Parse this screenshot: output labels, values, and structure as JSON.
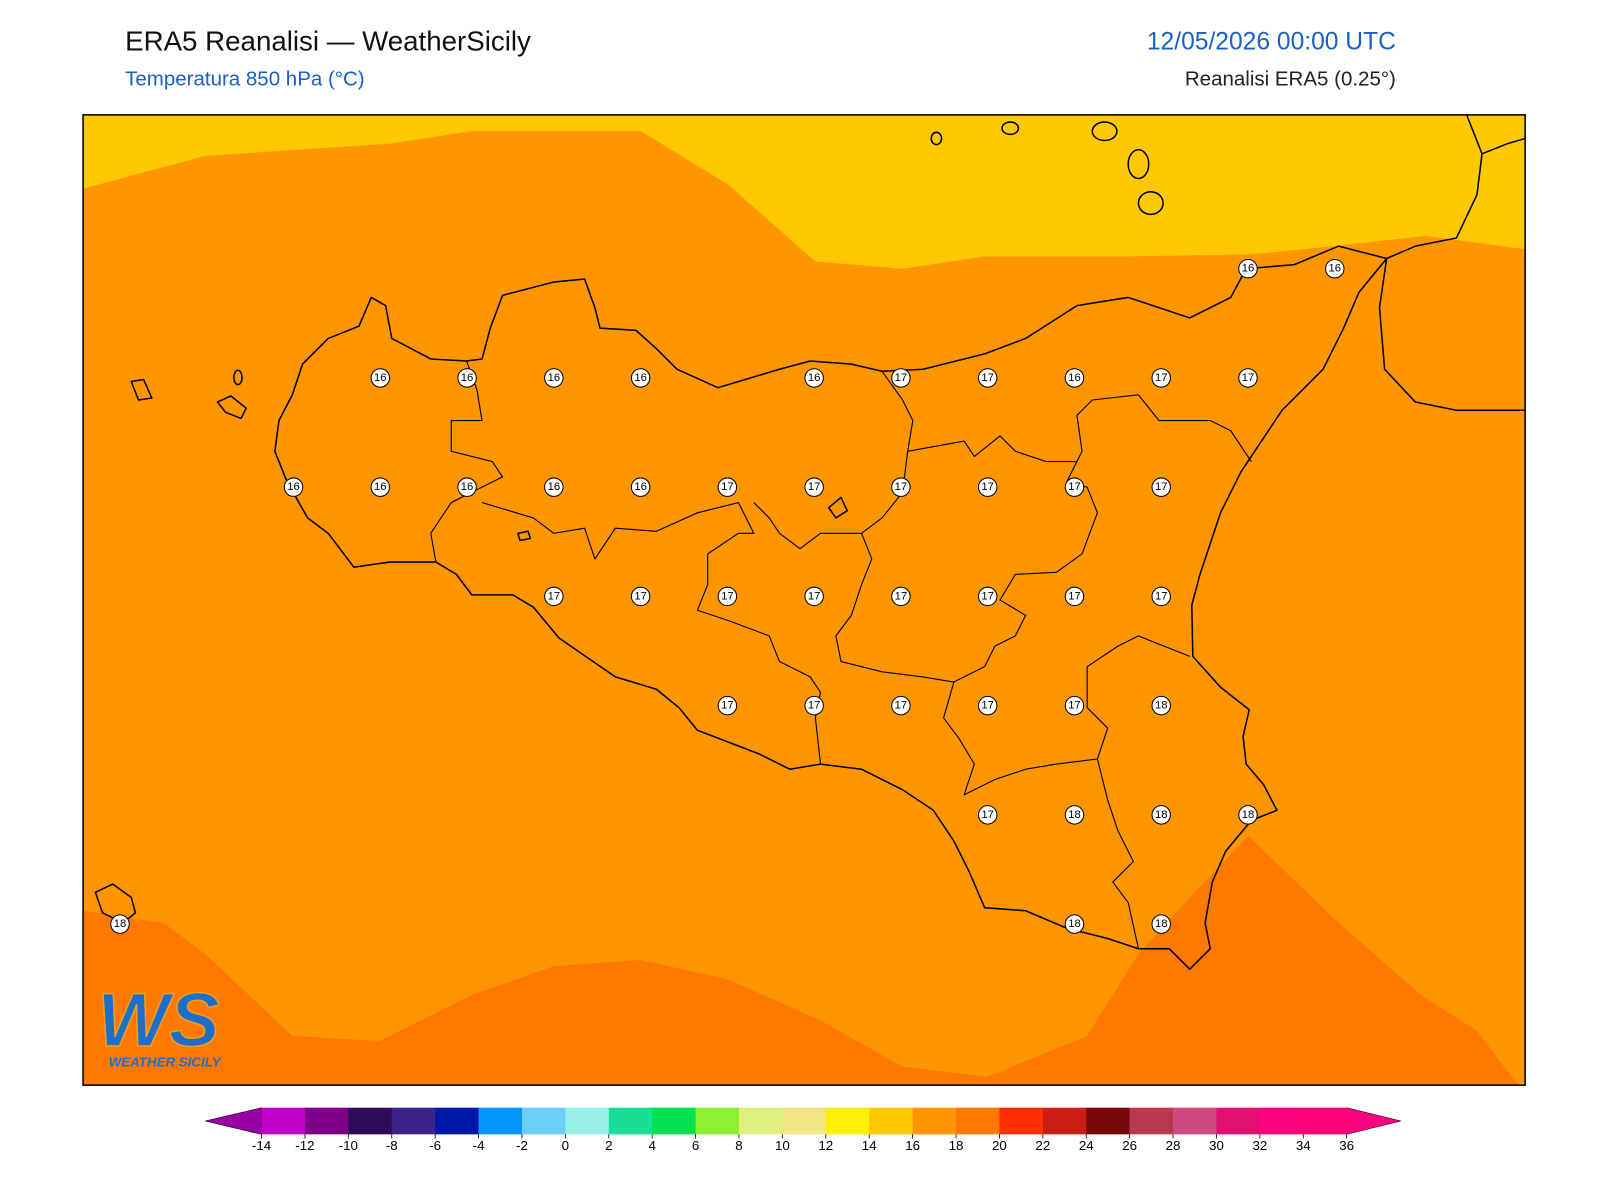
{
  "header": {
    "title": "ERA5 Reanalisi — WeatherSicily",
    "subtitle": "Temperatura 850 hPa (°C)",
    "datetime": "12/05/2026 00:00 UTC",
    "source": "Reanalisi ERA5 (0.25°)"
  },
  "logo": {
    "letters": "WS",
    "name": "WEATHER SICILY"
  },
  "grid_labels": [
    [
      null,
      null,
      null,
      null,
      null,
      null,
      null,
      null,
      null,
      null,
      null,
      null,
      null,
      16,
      16
    ],
    [
      null,
      null,
      null,
      16,
      16,
      16,
      16,
      null,
      16,
      17,
      17,
      16,
      17,
      17,
      null
    ],
    [
      null,
      null,
      16,
      16,
      16,
      16,
      16,
      17,
      17,
      17,
      17,
      17,
      17,
      null,
      null
    ],
    [
      null,
      null,
      null,
      null,
      null,
      17,
      17,
      17,
      17,
      17,
      17,
      17,
      17,
      null,
      null
    ],
    [
      null,
      null,
      null,
      null,
      null,
      null,
      null,
      17,
      17,
      17,
      17,
      17,
      18,
      null,
      null
    ],
    [
      null,
      null,
      null,
      null,
      null,
      null,
      null,
      null,
      null,
      null,
      17,
      18,
      18,
      18,
      null
    ],
    [
      18,
      null,
      null,
      null,
      null,
      null,
      null,
      null,
      null,
      null,
      null,
      18,
      18,
      null,
      null
    ]
  ],
  "colorbar": {
    "ticks": [
      -14,
      -12,
      -10,
      -8,
      -6,
      -4,
      -2,
      0,
      2,
      4,
      6,
      8,
      10,
      12,
      14,
      16,
      18,
      20,
      22,
      24,
      26,
      28,
      30,
      32,
      34,
      36
    ],
    "under_color": "#9a00a4",
    "colors": [
      "#c000c8",
      "#80008a",
      "#2e0c58",
      "#3a2288",
      "#0018a8",
      "#0096ff",
      "#6ccff8",
      "#98f0e8",
      "#18de98",
      "#00e050",
      "#8ef030",
      "#dff080",
      "#f0e684",
      "#fff000",
      "#ffc800",
      "#ff9600",
      "#ff7800",
      "#ff3000",
      "#c81e14",
      "#780808",
      "#b83850",
      "#d04880",
      "#e01070",
      "#ff0080",
      "#ff0078"
    ],
    "over_color": "#ff0080"
  }
}
